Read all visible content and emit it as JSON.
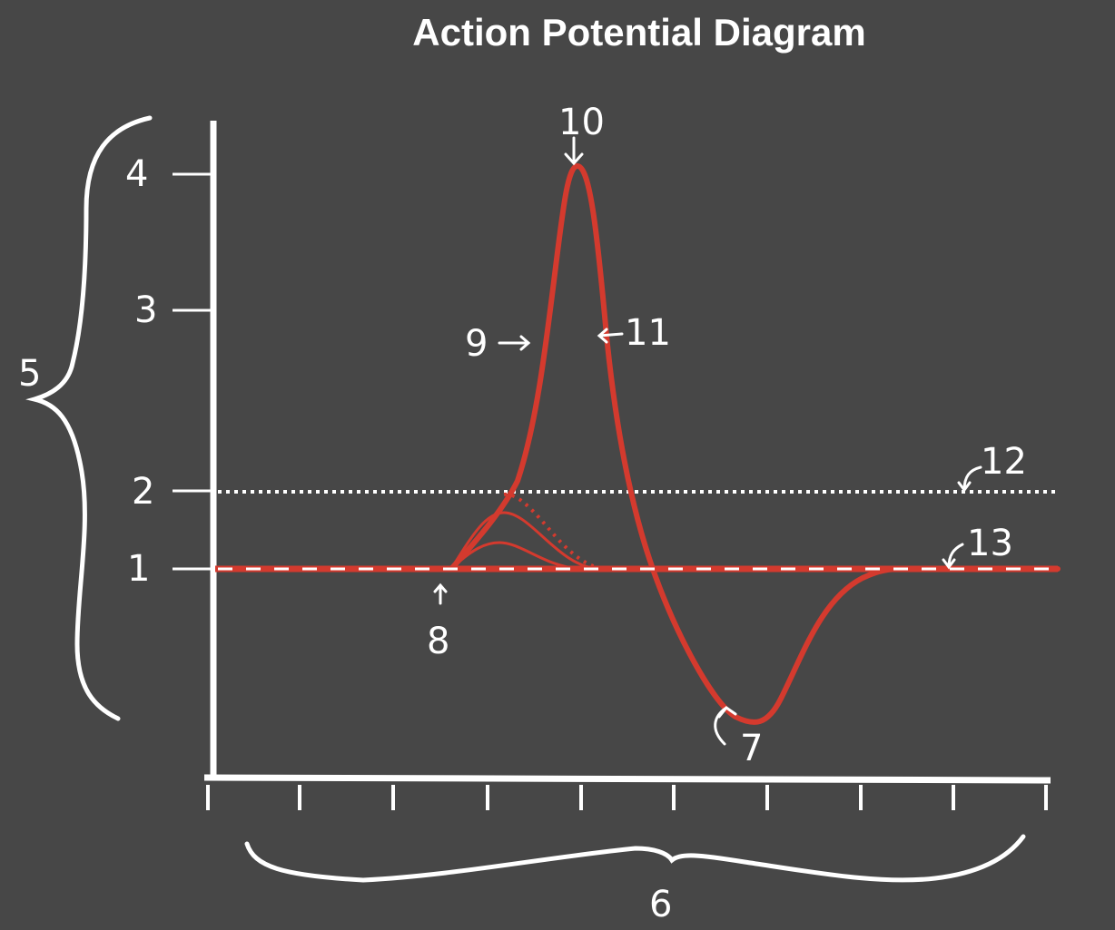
{
  "title": "Action Potential Diagram",
  "colors": {
    "background": "#474747",
    "curve": "#d43a2e",
    "axes": "#ffffff"
  },
  "y_tick_labels": [
    "1",
    "2",
    "3",
    "4"
  ],
  "labels": {
    "y_brace": "5",
    "x_brace": "6",
    "trough": "7",
    "stimulus": "8",
    "depolarization": "9",
    "peak": "10",
    "repolarization": "11",
    "threshold": "12",
    "resting": "13"
  }
}
